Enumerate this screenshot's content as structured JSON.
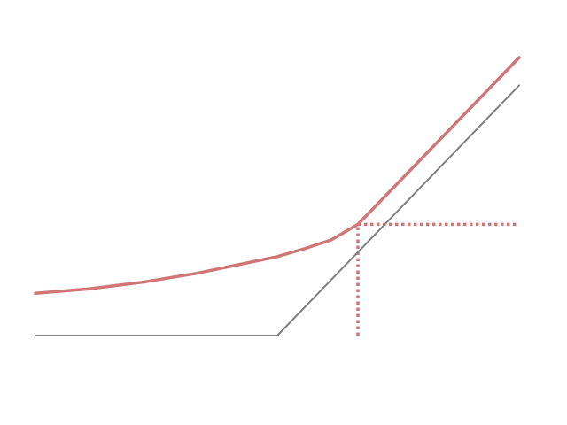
{
  "chart_data": {
    "type": "line",
    "title": "",
    "xlabel": "",
    "ylabel": "",
    "xlim": [
      -3,
      1.5
    ],
    "ylim": [
      0,
      2.5
    ],
    "grid": false,
    "legend": "none",
    "axes_visible": false,
    "series": [
      {
        "color": "#7f7f7f",
        "style": "solid",
        "points": [
          [
            -3.0,
            0.0
          ],
          [
            -0.75,
            0.0
          ],
          [
            0.0,
            0.75
          ],
          [
            1.5,
            2.25
          ]
        ]
      },
      {
        "color": "#d07676",
        "style": "solid",
        "points": [
          [
            -3.0,
            0.38
          ],
          [
            -2.5,
            0.42
          ],
          [
            -2.0,
            0.48
          ],
          [
            -1.5,
            0.56
          ],
          [
            -1.0,
            0.66
          ],
          [
            -0.75,
            0.71
          ],
          [
            -0.5,
            0.78
          ],
          [
            -0.25,
            0.86
          ],
          [
            0.0,
            1.0
          ],
          [
            1.5,
            2.5
          ]
        ]
      }
    ],
    "reference_lines": [
      {
        "color": "#d07676",
        "style": "dotted",
        "points": [
          [
            0.0,
            0.0
          ],
          [
            0.0,
            1.0
          ]
        ]
      },
      {
        "color": "#d07676",
        "style": "dotted",
        "points": [
          [
            0.0,
            1.0
          ],
          [
            1.5,
            1.0
          ]
        ]
      }
    ]
  }
}
